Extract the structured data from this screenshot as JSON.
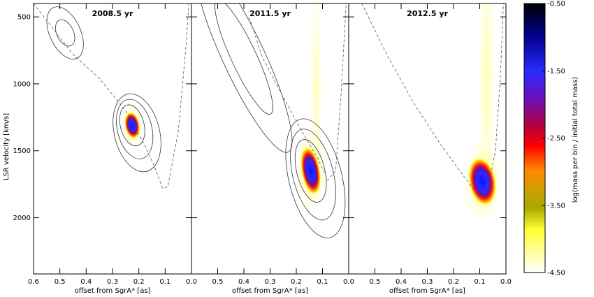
{
  "chart_data": {
    "type": "contour",
    "shared_x_range": [
      0.6,
      0.0
    ],
    "shared_y_range": [
      400,
      2420
    ],
    "x_ticks": [
      "0.6",
      "0.5",
      "0.4",
      "0.3",
      "0.2",
      "0.1",
      "0.0"
    ],
    "y_ticks": [
      "500",
      "1000",
      "1500",
      "2000"
    ],
    "ylabel": "LSR velocity [km/s]",
    "panels": [
      {
        "title": "2008.5 yr",
        "xlabel": "offset from SgrA* [as]",
        "x_ticks_shown": [
          "0.6",
          "0.5",
          "0.4",
          "0.3",
          "0.2",
          "0.1",
          "0.0"
        ],
        "blob": {
          "x": 0.225,
          "y": 1310,
          "peak": -0.8
        },
        "dashed_orbit": [
          [
            0.6,
            400
          ],
          [
            0.45,
            780
          ],
          [
            0.35,
            960
          ],
          [
            0.25,
            1200
          ],
          [
            0.18,
            1450
          ],
          [
            0.14,
            1620
          ],
          [
            0.11,
            1780
          ],
          [
            0.09,
            1770
          ],
          [
            0.05,
            1350
          ],
          [
            0.02,
            700
          ],
          [
            0.01,
            400
          ]
        ]
      },
      {
        "title": "2011.5 yr",
        "xlabel": "offset from SgrA* [as]",
        "x_ticks_shown": [
          "0.5",
          "0.4",
          "0.3",
          "0.2",
          "0.1",
          "0.0"
        ],
        "blob": {
          "x": 0.145,
          "y": 1650,
          "peak": -0.8
        },
        "dashed_orbit": [
          [
            0.38,
            500
          ],
          [
            0.33,
            800
          ],
          [
            0.25,
            1100
          ],
          [
            0.18,
            1350
          ],
          [
            0.12,
            1550
          ],
          [
            0.08,
            1720
          ],
          [
            0.05,
            1650
          ],
          [
            0.03,
            1100
          ],
          [
            0.01,
            400
          ]
        ]
      },
      {
        "title": "2012.5 yr",
        "xlabel": "offset from SgrA* [as]",
        "x_ticks_shown": [
          "0.5",
          "0.4",
          "0.3",
          "0.2",
          "0.1",
          "0.0"
        ],
        "blob": {
          "x": 0.09,
          "y": 1730,
          "peak": -0.9
        },
        "dashed_orbit": [
          [
            0.55,
            400
          ],
          [
            0.45,
            800
          ],
          [
            0.35,
            1150
          ],
          [
            0.25,
            1450
          ],
          [
            0.15,
            1720
          ],
          [
            0.1,
            1850
          ],
          [
            0.07,
            1800
          ],
          [
            0.04,
            1500
          ],
          [
            0.02,
            900
          ],
          [
            0.01,
            400
          ]
        ]
      }
    ],
    "colorbar": {
      "label": "log(mass per bin / initial total mass)",
      "range": [
        -4.5,
        -0.5
      ],
      "ticks": [
        "-0.50",
        "-1.50",
        "-2.50",
        "-3.50",
        "-4.50"
      ]
    }
  }
}
